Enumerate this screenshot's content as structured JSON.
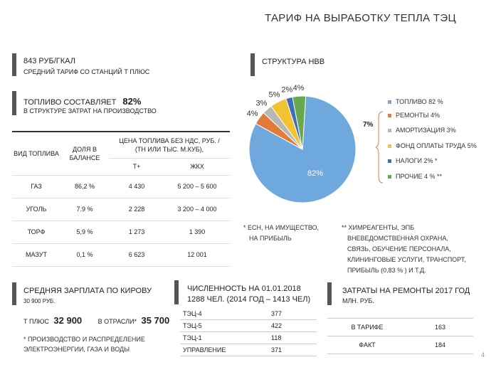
{
  "header": {
    "title": "ТАРИФ НА ВЫРАБОТКУ ТЕПЛА ТЭЦ"
  },
  "tariff": {
    "value": "843 РУБ/ГКАЛ",
    "caption": "СРЕДНИЙ ТАРИФ СО СТАНЦИЙ Т ПЛЮС"
  },
  "fuel_share": {
    "prefix": "ТОПЛИВО СОСТАВЛЯЕТ",
    "value": "82%",
    "caption": "В СТРУКТУРЕ ЗАТРАТ НА ПРОИЗВОДСТВО"
  },
  "fuel_table": {
    "col_type": "ВИД ТОПЛИВА",
    "col_share": "ДОЛЯ В БАЛАНСЕ",
    "col_price": "ЦЕНА ТОПЛИВА БЕЗ НДС, РУБ. / (ТН ИЛИ ТЫС. М.КУБ),",
    "col_tplus": "Т+",
    "col_zhkh": "ЖКХ",
    "rows": [
      {
        "type": "ГАЗ",
        "share": "86,2 %",
        "tplus": "4 430",
        "zhkh": "5 200 – 5 600"
      },
      {
        "type": "УГОЛЬ",
        "share": "7.9 %",
        "tplus": "2 228",
        "zhkh": "3 200 – 4 000"
      },
      {
        "type": "ТОРФ",
        "share": "5,9 %",
        "tplus": "1 273",
        "zhkh": "1 390"
      },
      {
        "type": "МАЗУТ",
        "share": "0,1 %",
        "tplus": "6 623",
        "zhkh": "12 001"
      }
    ]
  },
  "nvv": {
    "title": "СТРУКТУРА НВВ",
    "bracket_label": "7%",
    "legend": [
      "ТОПЛИВО 82 %",
      "РЕМОНТЫ 4%",
      "АМОРТИЗАЦИЯ 3%",
      "ФОНД ОПЛАТЫ ТРУДА 5%",
      "НАЛОГИ 2% *",
      "ПРОЧИЕ 4 % **"
    ],
    "note1": [
      "* ЕСН, НА ИМУЩЕСТВО,",
      "НА ПРИБЫЛЬ"
    ],
    "note2": [
      "** ХИМРЕАГЕНТЫ, ЭПБ",
      "ВНЕВЕДОМСТВЕННАЯ ОХРАНА,",
      "СВЯЗЬ, ОБУЧЕНИЕ ПЕРСОНАЛА,",
      "КЛИНИНГОВЫЕ УСЛУГИ, ТРАНСПОРТ,",
      "ПРИБЫЛЬ (0,83 % ) И Т.Д."
    ]
  },
  "chart_data": {
    "type": "pie",
    "categories": [
      "ТОПЛИВО",
      "РЕМОНТЫ",
      "АМОРТИЗАЦИЯ",
      "ФОНД ОПЛАТЫ ТРУДА",
      "НАЛОГИ",
      "ПРОЧИЕ"
    ],
    "values": [
      82,
      4,
      3,
      5,
      2,
      4
    ],
    "labels": [
      "82%",
      "4%",
      "3%",
      "5%",
      "2%",
      "4%"
    ],
    "colors": [
      "#6fa8dc",
      "#e07b39",
      "#b7b7b7",
      "#f1c232",
      "#3d6fb6",
      "#6aa84f"
    ]
  },
  "salary": {
    "title": "СРЕДНЯЯ ЗАРПЛАТА ПО КИРОВУ",
    "sub": "30 900 РУБ.",
    "tplus_label": "Т ПЛЮС",
    "tplus_value": "32 900",
    "industry_label": "В ОТРАСЛИ*",
    "industry_value": "35 700",
    "note": [
      "* ПРОИЗВОДСТВО И РАСПРЕДЕЛЕНИЕ",
      "ЭЛЕКТРОЭНЕРГИИ, ГАЗА И ВОДЫ"
    ]
  },
  "staff": {
    "title": "ЧИСЛЕННОСТЬ НА 01.01.2018",
    "sub": "1288 ЧЕЛ. (2014 ГОД – 1413 ЧЕЛ)",
    "rows": [
      {
        "name": "ТЭЦ-4",
        "value": "377"
      },
      {
        "name": "ТЭЦ-5",
        "value": "422"
      },
      {
        "name": "ТЭЦ-1",
        "value": "118"
      },
      {
        "name": "УПРАВЛЕНИЕ",
        "value": "371"
      }
    ]
  },
  "repairs": {
    "title": "ЗАТРАТЫ НА РЕМОНТЫ 2017 ГОД",
    "sub": "МЛН. РУБ.",
    "rows": [
      {
        "name": "В ТАРИФЕ",
        "value": "163"
      },
      {
        "name": "ФАКТ",
        "value": "184"
      }
    ]
  },
  "page_number": "4"
}
